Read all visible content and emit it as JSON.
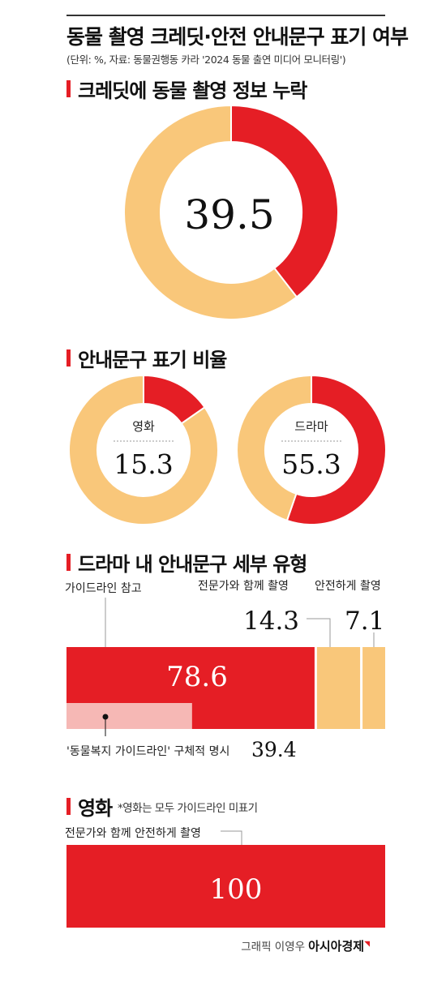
{
  "header": {
    "title": "동물 촬영 크레딧·안전 안내문구 표기 여부",
    "source": "(단위: %, 자료: 동물권행동 카라 '2024 동물 출연 미디어 모니터링')"
  },
  "sections": {
    "credit_missing": "크레딧에 동물 촬영 정보 누락",
    "notice_ratio": "안내문구 표기 비율",
    "drama_types": "드라마 내 안내문구 세부 유형",
    "movie": "영화",
    "movie_note": "*영화는 모두 가이드라인 미표기"
  },
  "credit": {
    "author": "그래픽 이영우",
    "brand": "아시아경제"
  },
  "colors": {
    "accent": "#e51e25",
    "secondary": "#f9c77a",
    "light_red": "#f6b8b5"
  },
  "chart_data": [
    {
      "type": "pie",
      "title": "크레딧에 동물 촬영 정보 누락",
      "values": [
        39.5,
        60.5
      ],
      "center_label": "39.5",
      "colors": [
        "#e51e25",
        "#f9c77a"
      ]
    },
    {
      "type": "pie",
      "title": "영화",
      "values": [
        15.3,
        84.7
      ],
      "center_label": "15.3",
      "colors": [
        "#e51e25",
        "#f9c77a"
      ]
    },
    {
      "type": "pie",
      "title": "드라마",
      "values": [
        55.3,
        44.7
      ],
      "center_label": "55.3",
      "colors": [
        "#e51e25",
        "#f9c77a"
      ]
    },
    {
      "type": "bar",
      "title": "드라마 내 안내문구 세부 유형",
      "stacked": true,
      "categories": [
        "가이드라인 참고",
        "전문가와 함께 촬영",
        "안전하게 촬영"
      ],
      "values": [
        78.6,
        14.3,
        7.1
      ],
      "value_labels": [
        "78.6",
        "14.3",
        "7.1"
      ],
      "sub_bar": {
        "label": "'동물복지 가이드라인' 구체적 명시",
        "value": 39.4,
        "value_label": "39.4"
      }
    },
    {
      "type": "bar",
      "title": "영화",
      "stacked": true,
      "categories": [
        "전문가와 함께 안전하게 촬영"
      ],
      "values": [
        100
      ],
      "value_labels": [
        "100"
      ]
    }
  ]
}
